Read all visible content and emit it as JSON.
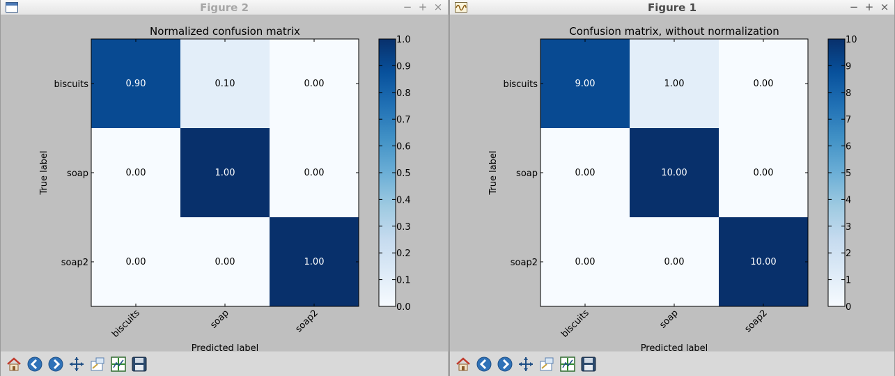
{
  "windows": [
    {
      "title": "Figure 2",
      "chart_data": {
        "type": "heatmap",
        "title": "Normalized confusion matrix",
        "xlabel": "Predicted label",
        "ylabel": "True label",
        "x_categories": [
          "biscuits",
          "soap",
          "soap2"
        ],
        "y_categories": [
          "biscuits",
          "soap",
          "soap2"
        ],
        "values": [
          [
            0.9,
            0.1,
            0.0
          ],
          [
            0.0,
            1.0,
            0.0
          ],
          [
            0.0,
            0.0,
            1.0
          ]
        ],
        "cell_labels": [
          [
            "0.90",
            "0.10",
            "0.00"
          ],
          [
            "0.00",
            "1.00",
            "0.00"
          ],
          [
            "0.00",
            "0.00",
            "1.00"
          ]
        ],
        "colormap": "Blues",
        "vmin": 0,
        "vmax": 1,
        "colorbar_ticks": [
          "0.0",
          "0.1",
          "0.2",
          "0.3",
          "0.4",
          "0.5",
          "0.6",
          "0.7",
          "0.8",
          "0.9",
          "1.0"
        ]
      }
    },
    {
      "title": "Figure 1",
      "chart_data": {
        "type": "heatmap",
        "title": "Confusion matrix, without normalization",
        "xlabel": "Predicted label",
        "ylabel": "True label",
        "x_categories": [
          "biscuits",
          "soap",
          "soap2"
        ],
        "y_categories": [
          "biscuits",
          "soap",
          "soap2"
        ],
        "values": [
          [
            9,
            1,
            0
          ],
          [
            0,
            10,
            0
          ],
          [
            0,
            0,
            10
          ]
        ],
        "cell_labels": [
          [
            "9.00",
            "1.00",
            "0.00"
          ],
          [
            "0.00",
            "10.00",
            "0.00"
          ],
          [
            "0.00",
            "0.00",
            "10.00"
          ]
        ],
        "colormap": "Blues",
        "vmin": 0,
        "vmax": 10,
        "colorbar_ticks": [
          "0",
          "1",
          "2",
          "3",
          "4",
          "5",
          "6",
          "7",
          "8",
          "9",
          "10"
        ]
      }
    }
  ],
  "window_controls": [
    "−",
    "+",
    "×"
  ],
  "toolbar": {
    "buttons": [
      "home-icon",
      "back-icon",
      "forward-icon",
      "pan-icon",
      "zoom-icon",
      "subplots-icon",
      "save-icon"
    ]
  }
}
